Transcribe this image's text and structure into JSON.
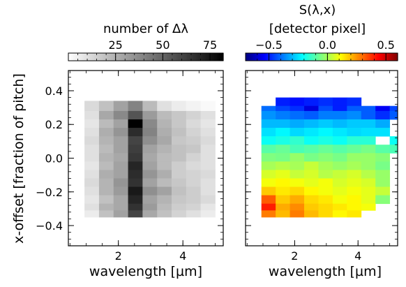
{
  "chart_data": [
    {
      "type": "heatmap",
      "panel": "left",
      "xlabel": "wavelength [µm]",
      "ylabel": "x-offset [fraction of pitch]",
      "xlim": [
        0.45,
        5.25
      ],
      "ylim": [
        -0.52,
        0.52
      ],
      "x_ticks": [
        2,
        4
      ],
      "y_ticks": [
        -0.4,
        -0.2,
        0.0,
        0.2,
        0.4
      ],
      "x_tick_labels": [
        "2",
        "4"
      ],
      "y_tick_labels": [
        "−0.4",
        "−0.2",
        "0.0",
        "0.2",
        "0.4"
      ],
      "colorbar": {
        "label": "number of Δλ",
        "range": [
          0,
          82
        ],
        "ticks": [
          25,
          50,
          75
        ],
        "tick_labels": [
          "25",
          "50",
          "75"
        ],
        "colormap": "gray_r"
      },
      "x_edges": [
        0.95,
        1.4,
        1.85,
        2.3,
        2.75,
        3.2,
        3.65,
        4.1,
        4.55,
        5.0
      ],
      "y_edges": [
        0.34,
        0.28,
        0.23,
        0.18,
        0.13,
        0.08,
        0.03,
        -0.02,
        -0.07,
        -0.12,
        -0.17,
        -0.22,
        -0.27,
        -0.31,
        -0.35
      ],
      "values": [
        [
          12,
          20,
          30,
          40,
          22,
          10,
          6,
          4,
          2
        ],
        [
          10,
          28,
          38,
          55,
          32,
          22,
          18,
          14,
          10
        ],
        [
          8,
          22,
          30,
          82,
          38,
          24,
          18,
          12,
          8
        ],
        [
          10,
          26,
          34,
          68,
          40,
          26,
          20,
          14,
          10
        ],
        [
          12,
          24,
          30,
          60,
          36,
          28,
          18,
          16,
          12
        ],
        [
          10,
          22,
          30,
          62,
          30,
          24,
          20,
          18,
          10
        ],
        [
          10,
          24,
          28,
          64,
          28,
          22,
          20,
          14,
          10
        ],
        [
          8,
          22,
          30,
          70,
          30,
          22,
          16,
          12,
          10
        ],
        [
          10,
          26,
          30,
          68,
          34,
          26,
          16,
          14,
          12
        ],
        [
          12,
          24,
          34,
          66,
          30,
          22,
          18,
          14,
          10
        ],
        [
          10,
          24,
          32,
          74,
          36,
          30,
          20,
          16,
          10
        ],
        [
          8,
          20,
          28,
          70,
          30,
          24,
          18,
          16,
          12
        ],
        [
          10,
          24,
          28,
          66,
          32,
          22,
          16,
          14,
          8
        ],
        [
          6,
          20,
          30,
          60,
          28,
          20,
          14,
          10,
          6
        ]
      ]
    },
    {
      "type": "heatmap",
      "panel": "right",
      "xlabel": "wavelength [µm]",
      "xlim": [
        0.45,
        5.25
      ],
      "ylim": [
        -0.52,
        0.52
      ],
      "x_ticks": [
        2,
        4
      ],
      "x_tick_labels": [
        "2",
        "4"
      ],
      "colorbar": {
        "label_line1": "S(λ,x)",
        "label_line2": "[detector pixel]",
        "range": [
          -0.7,
          0.6
        ],
        "ticks": [
          -0.5,
          0.0,
          0.5
        ],
        "tick_labels": [
          "−0.5",
          "0.0",
          "0.5"
        ],
        "colormap": "jet"
      },
      "x_edges": [
        0.95,
        1.4,
        1.85,
        2.3,
        2.75,
        3.2,
        3.65,
        4.1,
        4.55,
        5.0,
        5.25
      ],
      "y_edges": [
        0.36,
        0.31,
        0.28,
        0.23,
        0.18,
        0.13,
        0.08,
        0.03,
        -0.02,
        -0.07,
        -0.12,
        -0.17,
        -0.22,
        -0.27,
        -0.31,
        -0.35
      ],
      "values": [
        [
          null,
          -0.5,
          -0.52,
          -0.5,
          -0.48,
          -0.5,
          -0.48,
          null,
          null,
          null
        ],
        [
          -0.4,
          -0.45,
          -0.48,
          -0.58,
          -0.44,
          -0.5,
          -0.42,
          -0.42,
          -0.55,
          -0.45
        ],
        [
          -0.35,
          -0.38,
          -0.4,
          -0.42,
          -0.38,
          -0.38,
          -0.36,
          -0.42,
          -0.48,
          -0.42
        ],
        [
          -0.3,
          -0.3,
          -0.32,
          -0.3,
          -0.28,
          -0.3,
          -0.28,
          -0.28,
          -0.32,
          null
        ],
        [
          -0.25,
          -0.22,
          -0.26,
          -0.24,
          -0.22,
          -0.24,
          -0.26,
          -0.25,
          -0.25,
          null
        ],
        [
          -0.2,
          -0.18,
          -0.15,
          -0.2,
          -0.18,
          -0.2,
          -0.16,
          -0.16,
          null,
          -0.2
        ],
        [
          -0.1,
          -0.08,
          -0.12,
          -0.1,
          -0.08,
          -0.1,
          -0.08,
          -0.06,
          -0.1,
          -0.12
        ],
        [
          -0.05,
          -0.06,
          -0.02,
          -0.06,
          -0.04,
          -0.06,
          -0.02,
          -0.02,
          -0.04,
          null
        ],
        [
          0.0,
          0.02,
          0.0,
          0.04,
          0.0,
          -0.02,
          0.0,
          -0.02,
          -0.06,
          null
        ],
        [
          0.06,
          0.08,
          0.04,
          0.06,
          0.02,
          0.04,
          0.06,
          0.02,
          -0.02,
          null
        ],
        [
          0.1,
          0.12,
          0.1,
          0.08,
          0.1,
          0.06,
          0.08,
          0.06,
          -0.02,
          null
        ],
        [
          0.18,
          0.14,
          0.16,
          0.12,
          0.1,
          0.08,
          0.1,
          0.08,
          0.04,
          null
        ],
        [
          0.32,
          0.18,
          0.22,
          0.16,
          0.14,
          0.1,
          0.12,
          0.08,
          -0.04,
          null
        ],
        [
          0.4,
          0.22,
          0.26,
          0.18,
          0.16,
          0.14,
          0.12,
          0.1,
          null,
          null
        ],
        [
          0.28,
          0.2,
          0.28,
          0.2,
          0.16,
          0.12,
          0.14,
          null,
          null,
          null
        ]
      ]
    }
  ]
}
